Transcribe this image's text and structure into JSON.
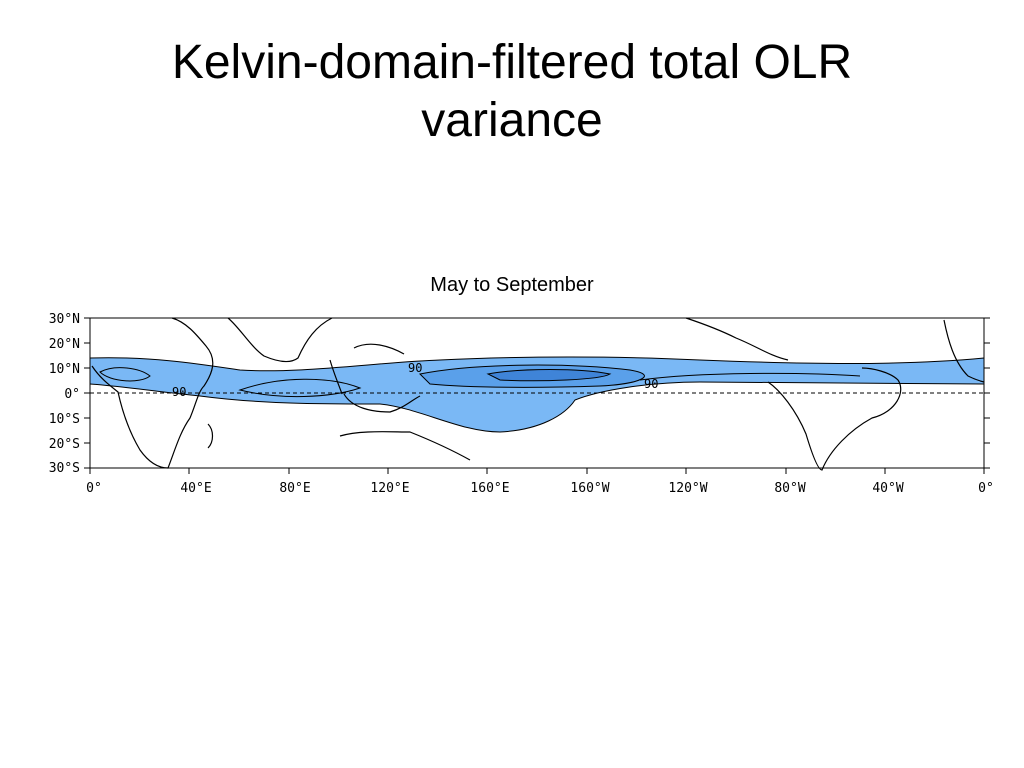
{
  "slide": {
    "title_line1": "Kelvin-domain-filtered total OLR",
    "title_line2": "variance",
    "subtitle": "May to September"
  },
  "map": {
    "y_axis_labels": [
      "30°N",
      "20°N",
      "10°N",
      "0°",
      "10°S",
      "20°S",
      "30°S"
    ],
    "x_axis_labels": [
      "0°",
      "40°E",
      "80°E",
      "120°E",
      "160°E",
      "160°W",
      "120°W",
      "80°W",
      "40°W",
      "0°"
    ],
    "contour_labels": [
      "90",
      "90",
      "90"
    ],
    "colors": {
      "shade_light": "#7ab8f5",
      "shade_mid": "#5aa0ea",
      "shade_dark": "#3f84d8",
      "coast": "#000000"
    }
  }
}
